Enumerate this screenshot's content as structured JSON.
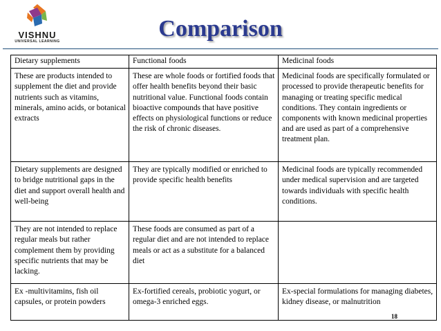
{
  "logo": {
    "name": "VISHNU",
    "tagline": "UNIVERSAL LEARNING",
    "colors": [
      "#e87722",
      "#7ab648",
      "#8e3a8c",
      "#2b6cb0"
    ]
  },
  "title": "Comparison",
  "title_color": "#2b3a8f",
  "table": {
    "headers": [
      "Dietary supplements",
      "Functional foods",
      "Medicinal foods"
    ],
    "rows": [
      [
        "These are products intended to supplement the diet and provide nutrients such as vitamins, minerals, amino acids, or botanical extracts",
        "These are whole foods or fortified foods that offer health benefits beyond their basic nutritional value. Functional foods contain bioactive compounds that have positive effects on physiological functions or reduce the risk of chronic diseases.",
        "Medicinal foods are specifically formulated or processed to provide therapeutic benefits for managing or treating specific medical conditions. They contain ingredients or components with known medicinal properties and are used as part of a comprehensive treatment plan."
      ],
      [
        "Dietary supplements are designed to bridge nutritional gaps in the diet and support overall health and well-being",
        "They are typically modified or enriched to provide specific health benefits",
        "Medicinal foods are typically recommended under medical supervision and are targeted towards individuals with specific health conditions."
      ],
      [
        "They are not intended to replace regular meals but rather complement them by providing specific nutrients that may be lacking.",
        " These foods are consumed as part of a regular diet and are not intended to replace meals or act as a substitute for a balanced diet",
        ""
      ],
      [
        "Ex -multivitamins, fish oil capsules, or protein powders",
        "Ex-fortified cereals, probiotic yogurt, or omega-3 enriched eggs.",
        "Ex-special formulations for managing diabetes, kidney disease, or malnutrition"
      ]
    ]
  },
  "page_number": "18"
}
